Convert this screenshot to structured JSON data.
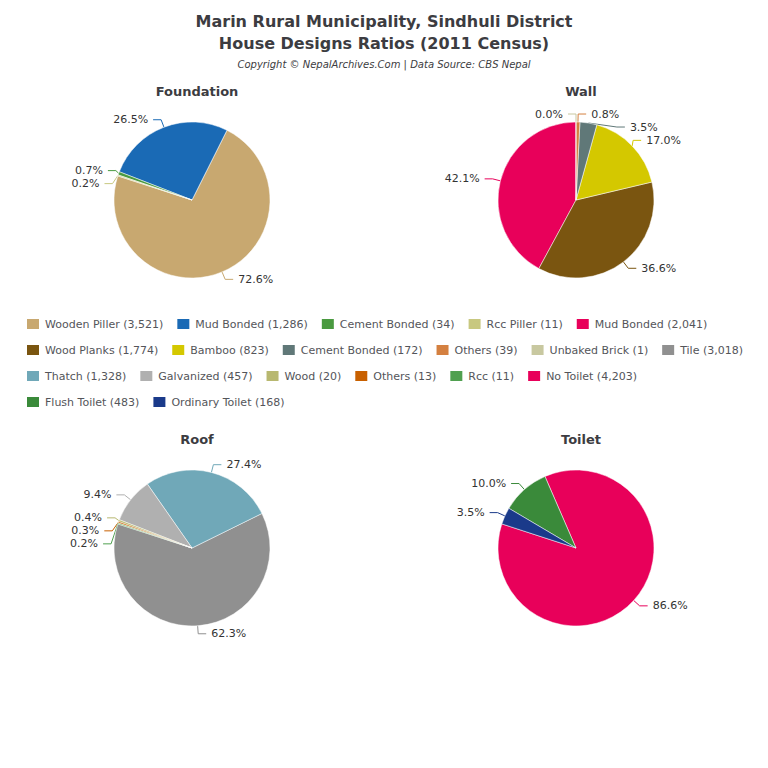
{
  "title": "Marin Rural Municipality, Sindhuli District",
  "subtitle": "House Designs Ratios (2011 Census)",
  "annotations": [
    "Copyright © NepalArchives.Com | Data Source: CBS Nepal"
  ],
  "legend": "center",
  "chart_data": [
    {
      "type": "pie",
      "title": "Foundation",
      "categories": [
        "Wooden Piller (3,521)",
        "Mud Bonded (1,286)",
        "Cement Bonded (34)",
        "Rcc Piller (11)"
      ],
      "values": [
        72.6,
        26.5,
        0.7,
        0.2
      ],
      "value_labels": [
        "72.6%",
        "26.5%",
        "0.7%",
        "0.2%"
      ],
      "colors": [
        "#c8a870",
        "#1a6ab5",
        "#4a9a40",
        "#c8c880"
      ],
      "data_labels": true
    },
    {
      "type": "pie",
      "title": "Wall",
      "categories": [
        "Mud Bonded (2,041)",
        "Wood Planks (1,774)",
        "Bamboo (823)",
        "Cement Bonded (172)",
        "Others (39)",
        "Unbaked Brick (1)"
      ],
      "values": [
        42.1,
        36.6,
        17.0,
        3.5,
        0.8,
        0.0
      ],
      "value_labels": [
        "42.1%",
        "36.6%",
        "17.0%",
        "3.5%",
        "0.8%",
        "0.0%"
      ],
      "colors": [
        "#e8005a",
        "#7a5510",
        "#d4c800",
        "#607878",
        "#d48040",
        "#c8c8a0"
      ],
      "data_labels": true
    },
    {
      "type": "pie",
      "title": "Roof",
      "categories": [
        "Tile (3,018)",
        "Thatch (1,328)",
        "Galvanized (457)",
        "Wood (20)",
        "Others (13)",
        "Rcc (11)"
      ],
      "values": [
        62.3,
        27.4,
        9.4,
        0.4,
        0.3,
        0.2
      ],
      "value_labels": [
        "62.3%",
        "27.4%",
        "9.4%",
        "0.4%",
        "0.3%",
        "0.2%"
      ],
      "colors": [
        "#909090",
        "#70a8b8",
        "#b0b0b0",
        "#b8b870",
        "#c86000",
        "#50a050"
      ],
      "data_labels": true
    },
    {
      "type": "pie",
      "title": "Toilet",
      "categories": [
        "No Toilet (4,203)",
        "Flush Toilet (483)",
        "Ordinary Toilet (168)"
      ],
      "values": [
        86.6,
        10.0,
        3.5
      ],
      "value_labels": [
        "86.6%",
        "10.0%",
        "3.5%"
      ],
      "colors": [
        "#e8005a",
        "#3a8a3a",
        "#1a3a8a"
      ],
      "data_labels": true
    }
  ]
}
